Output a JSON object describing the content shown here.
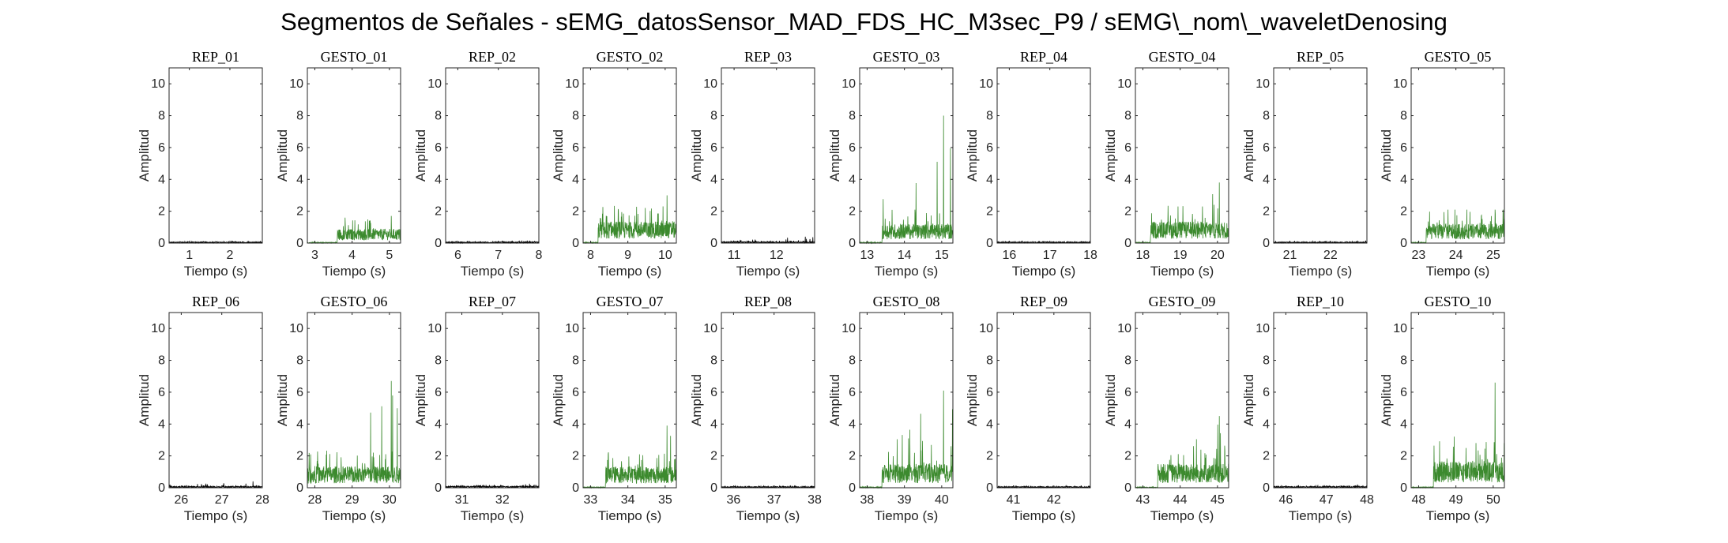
{
  "figure": {
    "title": "Segmentos de Señales - sEMG_datosSensor_MAD_FDS_HC_M3sec_P9 / sEMG\\_nom\\_waveletDenosing"
  },
  "chart_data": [
    {
      "type": "line",
      "title": "REP_01",
      "xlabel": "Tiempo (s)",
      "ylabel": "Amplitud",
      "xlim": [
        0.5,
        2.8
      ],
      "ylim": [
        0,
        11
      ],
      "xticks": [
        1,
        2
      ],
      "yticks": [
        0,
        2,
        4,
        6,
        8,
        10
      ],
      "color": "#000000",
      "segment": {
        "start": 0.5,
        "active_start": 0.5,
        "end": 2.8,
        "level": 0.05,
        "peak": 0.1
      }
    },
    {
      "type": "line",
      "title": "GESTO_01",
      "xlabel": "Tiempo (s)",
      "ylabel": "Amplitud",
      "xlim": [
        2.8,
        5.3
      ],
      "ylim": [
        0,
        11
      ],
      "xticks": [
        3,
        4,
        5
      ],
      "yticks": [
        0,
        2,
        4,
        6,
        8,
        10
      ],
      "color": "#3c8a2e",
      "segment": {
        "start": 2.8,
        "active_start": 3.6,
        "end": 5.3,
        "level": 0.6,
        "peak": 1.7
      }
    },
    {
      "type": "line",
      "title": "REP_02",
      "xlabel": "Tiempo (s)",
      "ylabel": "Amplitud",
      "xlim": [
        5.7,
        8.0
      ],
      "ylim": [
        0,
        11
      ],
      "xticks": [
        6,
        7,
        8
      ],
      "yticks": [
        0,
        2,
        4,
        6,
        8,
        10
      ],
      "color": "#000000",
      "segment": {
        "start": 5.7,
        "active_start": 5.7,
        "end": 8.0,
        "level": 0.05,
        "peak": 0.15
      }
    },
    {
      "type": "line",
      "title": "GESTO_02",
      "xlabel": "Tiempo (s)",
      "ylabel": "Amplitud",
      "xlim": [
        7.8,
        10.3
      ],
      "ylim": [
        0,
        11
      ],
      "xticks": [
        8,
        9,
        10
      ],
      "yticks": [
        0,
        2,
        4,
        6,
        8,
        10
      ],
      "color": "#3c8a2e",
      "segment": {
        "start": 7.8,
        "active_start": 8.2,
        "end": 10.3,
        "level": 0.9,
        "peak": 3.0
      }
    },
    {
      "type": "line",
      "title": "REP_03",
      "xlabel": "Tiempo (s)",
      "ylabel": "Amplitud",
      "xlim": [
        10.7,
        12.9
      ],
      "ylim": [
        0,
        11
      ],
      "xticks": [
        11,
        12
      ],
      "yticks": [
        0,
        2,
        4,
        6,
        8,
        10
      ],
      "color": "#000000",
      "segment": {
        "start": 10.7,
        "active_start": 10.7,
        "end": 12.9,
        "level": 0.06,
        "peak": 0.4
      }
    },
    {
      "type": "line",
      "title": "GESTO_03",
      "xlabel": "Tiempo (s)",
      "ylabel": "Amplitud",
      "xlim": [
        12.8,
        15.3
      ],
      "ylim": [
        0,
        11
      ],
      "xticks": [
        13,
        14,
        15
      ],
      "yticks": [
        0,
        2,
        4,
        6,
        8,
        10
      ],
      "color": "#3c8a2e",
      "segment": {
        "start": 12.8,
        "active_start": 13.4,
        "end": 15.3,
        "level": 0.8,
        "peak": 8.0
      }
    },
    {
      "type": "line",
      "title": "REP_04",
      "xlabel": "Tiempo (s)",
      "ylabel": "Amplitud",
      "xlim": [
        15.7,
        18.0
      ],
      "ylim": [
        0,
        11
      ],
      "xticks": [
        16,
        17,
        18
      ],
      "yticks": [
        0,
        2,
        4,
        6,
        8,
        10
      ],
      "color": "#000000",
      "segment": {
        "start": 15.7,
        "active_start": 15.7,
        "end": 18.0,
        "level": 0.05,
        "peak": 0.12
      }
    },
    {
      "type": "line",
      "title": "GESTO_04",
      "xlabel": "Tiempo (s)",
      "ylabel": "Amplitud",
      "xlim": [
        17.8,
        20.3
      ],
      "ylim": [
        0,
        11
      ],
      "xticks": [
        18,
        19,
        20
      ],
      "yticks": [
        0,
        2,
        4,
        6,
        8,
        10
      ],
      "color": "#3c8a2e",
      "segment": {
        "start": 17.8,
        "active_start": 18.2,
        "end": 20.3,
        "level": 0.9,
        "peak": 3.8
      }
    },
    {
      "type": "line",
      "title": "REP_05",
      "xlabel": "Tiempo (s)",
      "ylabel": "Amplitud",
      "xlim": [
        20.6,
        22.9
      ],
      "ylim": [
        0,
        11
      ],
      "xticks": [
        21,
        22
      ],
      "yticks": [
        0,
        2,
        4,
        6,
        8,
        10
      ],
      "color": "#000000",
      "segment": {
        "start": 20.6,
        "active_start": 20.6,
        "end": 22.9,
        "level": 0.05,
        "peak": 0.15
      }
    },
    {
      "type": "line",
      "title": "GESTO_05",
      "xlabel": "Tiempo (s)",
      "ylabel": "Amplitud",
      "xlim": [
        22.8,
        25.3
      ],
      "ylim": [
        0,
        11
      ],
      "xticks": [
        23,
        24,
        25
      ],
      "yticks": [
        0,
        2,
        4,
        6,
        8,
        10
      ],
      "color": "#3c8a2e",
      "segment": {
        "start": 22.8,
        "active_start": 23.2,
        "end": 25.3,
        "level": 0.8,
        "peak": 2.1
      }
    },
    {
      "type": "line",
      "title": "REP_06",
      "xlabel": "Tiempo (s)",
      "ylabel": "Amplitud",
      "xlim": [
        25.7,
        28.0
      ],
      "ylim": [
        0,
        11
      ],
      "xticks": [
        26,
        27,
        28
      ],
      "yticks": [
        0,
        2,
        4,
        6,
        8,
        10
      ],
      "color": "#000000",
      "segment": {
        "start": 25.7,
        "active_start": 25.7,
        "end": 28.0,
        "level": 0.06,
        "peak": 0.4
      }
    },
    {
      "type": "line",
      "title": "GESTO_06",
      "xlabel": "Tiempo (s)",
      "ylabel": "Amplitud",
      "xlim": [
        27.8,
        30.3
      ],
      "ylim": [
        0,
        11
      ],
      "xticks": [
        28,
        29,
        30
      ],
      "yticks": [
        0,
        2,
        4,
        6,
        8,
        10
      ],
      "color": "#3c8a2e",
      "segment": {
        "start": 27.8,
        "active_start": 27.8,
        "end": 30.3,
        "level": 0.9,
        "peak": 6.7
      }
    },
    {
      "type": "line",
      "title": "REP_07",
      "xlabel": "Tiempo (s)",
      "ylabel": "Amplitud",
      "xlim": [
        30.6,
        32.9
      ],
      "ylim": [
        0,
        11
      ],
      "xticks": [
        31,
        32
      ],
      "yticks": [
        0,
        2,
        4,
        6,
        8,
        10
      ],
      "color": "#000000",
      "segment": {
        "start": 30.6,
        "active_start": 30.6,
        "end": 32.9,
        "level": 0.07,
        "peak": 0.25
      }
    },
    {
      "type": "line",
      "title": "GESTO_07",
      "xlabel": "Tiempo (s)",
      "ylabel": "Amplitud",
      "xlim": [
        32.8,
        35.3
      ],
      "ylim": [
        0,
        11
      ],
      "xticks": [
        33,
        34,
        35
      ],
      "yticks": [
        0,
        2,
        4,
        6,
        8,
        10
      ],
      "color": "#3c8a2e",
      "segment": {
        "start": 32.8,
        "active_start": 33.4,
        "end": 35.3,
        "level": 0.9,
        "peak": 3.9
      }
    },
    {
      "type": "line",
      "title": "REP_08",
      "xlabel": "Tiempo (s)",
      "ylabel": "Amplitud",
      "xlim": [
        35.7,
        38.0
      ],
      "ylim": [
        0,
        11
      ],
      "xticks": [
        36,
        37,
        38
      ],
      "yticks": [
        0,
        2,
        4,
        6,
        8,
        10
      ],
      "color": "#000000",
      "segment": {
        "start": 35.7,
        "active_start": 35.7,
        "end": 38.0,
        "level": 0.05,
        "peak": 0.12
      }
    },
    {
      "type": "line",
      "title": "GESTO_08",
      "xlabel": "Tiempo (s)",
      "ylabel": "Amplitud",
      "xlim": [
        37.8,
        40.3
      ],
      "ylim": [
        0,
        11
      ],
      "xticks": [
        38,
        39,
        40
      ],
      "yticks": [
        0,
        2,
        4,
        6,
        8,
        10
      ],
      "color": "#3c8a2e",
      "segment": {
        "start": 37.8,
        "active_start": 38.4,
        "end": 40.3,
        "level": 1.0,
        "peak": 6.1
      }
    },
    {
      "type": "line",
      "title": "REP_09",
      "xlabel": "Tiempo (s)",
      "ylabel": "Amplitud",
      "xlim": [
        40.6,
        42.9
      ],
      "ylim": [
        0,
        11
      ],
      "xticks": [
        41,
        42
      ],
      "yticks": [
        0,
        2,
        4,
        6,
        8,
        10
      ],
      "color": "#000000",
      "segment": {
        "start": 40.6,
        "active_start": 40.6,
        "end": 42.9,
        "level": 0.05,
        "peak": 0.12
      }
    },
    {
      "type": "line",
      "title": "GESTO_09",
      "xlabel": "Tiempo (s)",
      "ylabel": "Amplitud",
      "xlim": [
        42.8,
        45.3
      ],
      "ylim": [
        0,
        11
      ],
      "xticks": [
        43,
        44,
        45
      ],
      "yticks": [
        0,
        2,
        4,
        6,
        8,
        10
      ],
      "color": "#3c8a2e",
      "segment": {
        "start": 42.8,
        "active_start": 43.4,
        "end": 45.3,
        "level": 1.0,
        "peak": 4.5
      }
    },
    {
      "type": "line",
      "title": "REP_10",
      "xlabel": "Tiempo (s)",
      "ylabel": "Amplitud",
      "xlim": [
        45.7,
        48.0
      ],
      "ylim": [
        0,
        11
      ],
      "xticks": [
        46,
        47,
        48
      ],
      "yticks": [
        0,
        2,
        4,
        6,
        8,
        10
      ],
      "color": "#000000",
      "segment": {
        "start": 45.7,
        "active_start": 45.7,
        "end": 48.0,
        "level": 0.06,
        "peak": 0.2
      }
    },
    {
      "type": "line",
      "title": "GESTO_10",
      "xlabel": "Tiempo (s)",
      "ylabel": "Amplitud",
      "xlim": [
        47.8,
        50.3
      ],
      "ylim": [
        0,
        11
      ],
      "xticks": [
        48,
        49,
        50
      ],
      "yticks": [
        0,
        2,
        4,
        6,
        8,
        10
      ],
      "color": "#3c8a2e",
      "segment": {
        "start": 47.8,
        "active_start": 48.4,
        "end": 50.3,
        "level": 1.1,
        "peak": 6.6
      }
    }
  ]
}
